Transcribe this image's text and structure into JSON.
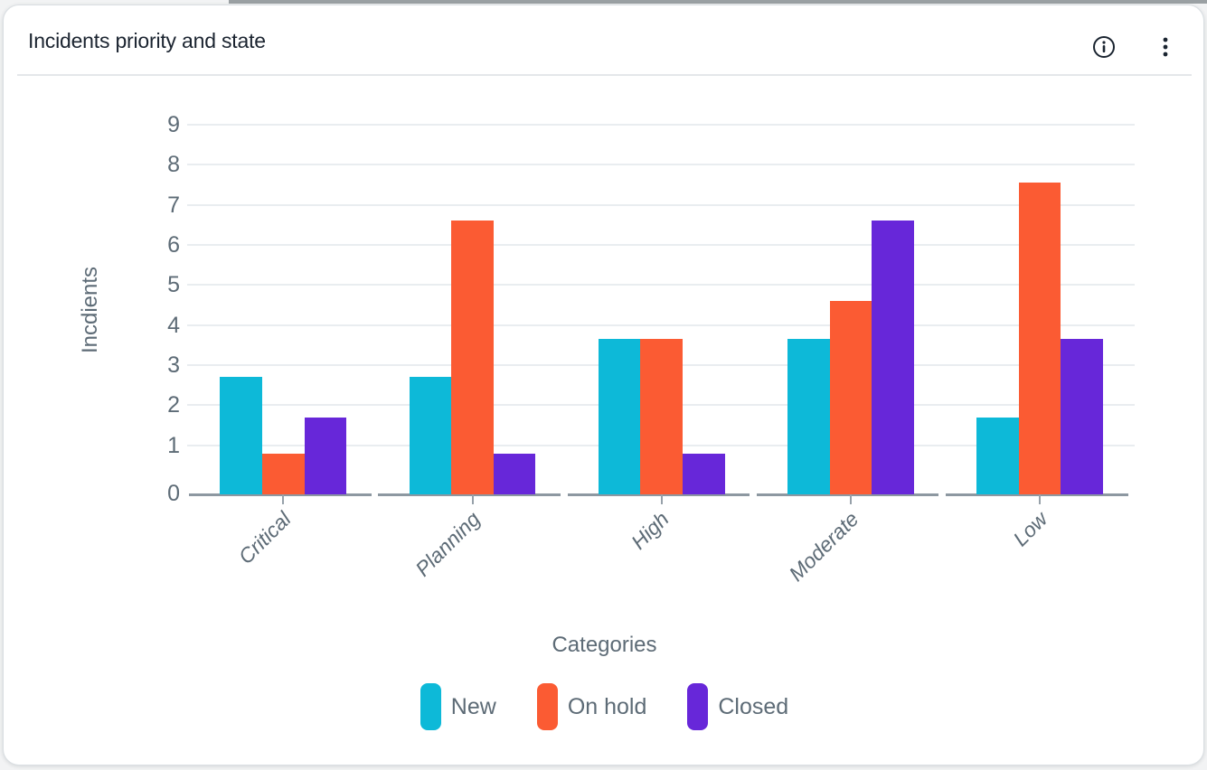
{
  "header": {
    "title": "Incidents priority and state",
    "icons": [
      {
        "name": "info-icon"
      },
      {
        "name": "kebab-menu-icon"
      }
    ]
  },
  "chart_data": {
    "type": "bar",
    "title": "Incidents priority and state",
    "categories": [
      "Critical",
      "Planning",
      "High",
      "Moderate",
      "Low"
    ],
    "series": [
      {
        "name": "New",
        "color": "#0db9d8",
        "values": [
          2.7,
          2.7,
          3.65,
          3.65,
          1.7
        ]
      },
      {
        "name": "On hold",
        "color": "#fb5b33",
        "values": [
          0.8,
          6.6,
          3.65,
          4.6,
          7.55
        ]
      },
      {
        "name": "Closed",
        "color": "#6727d9",
        "values": [
          1.7,
          0.8,
          0.8,
          6.6,
          3.65
        ]
      }
    ],
    "xlabel": "Categories",
    "ylabel": "Incdients",
    "ylim": [
      0,
      9
    ],
    "yticks": [
      0,
      1,
      2,
      3,
      4,
      5,
      6,
      7,
      8,
      9
    ],
    "grid": true,
    "grouped": true,
    "legend_position": "bottom",
    "axis_text_color": "#5d6b76",
    "gridline_color": "#e9edf0",
    "axis_line_color": "#8d98a1",
    "title_color": "#1b2430"
  }
}
